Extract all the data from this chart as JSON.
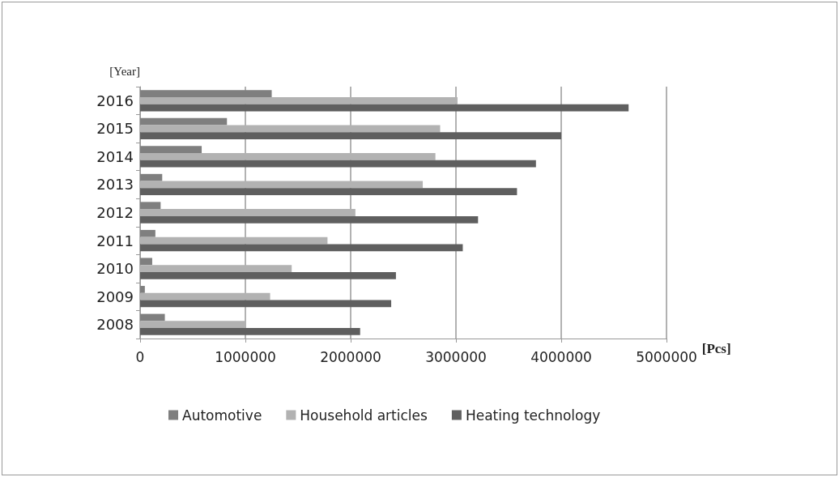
{
  "chart_data": {
    "type": "bar",
    "orientation": "horizontal",
    "ylabel": "[Year]",
    "xlabel": "[Pcs]",
    "categories": [
      "2016",
      "2015",
      "2014",
      "2013",
      "2012",
      "2011",
      "2010",
      "2009",
      "2008"
    ],
    "series": [
      {
        "name": "Automotive",
        "color": "#7f7f7f",
        "values": [
          1250000,
          825000,
          585000,
          210000,
          195000,
          145000,
          115000,
          45000,
          235000
        ]
      },
      {
        "name": "Household articles",
        "color": "#b2b2b2",
        "values": [
          3015000,
          2850000,
          2805000,
          2685000,
          2045000,
          1780000,
          1440000,
          1235000,
          1000000
        ]
      },
      {
        "name": "Heating technology",
        "color": "#5f5f5f",
        "values": [
          4640000,
          4000000,
          3760000,
          3580000,
          3210000,
          3065000,
          2430000,
          2385000,
          2090000
        ]
      }
    ],
    "xlim": [
      0,
      5000000
    ],
    "xticks": [
      0,
      1000000,
      2000000,
      3000000,
      4000000,
      5000000
    ],
    "grid": "x",
    "legend": "bottom"
  }
}
